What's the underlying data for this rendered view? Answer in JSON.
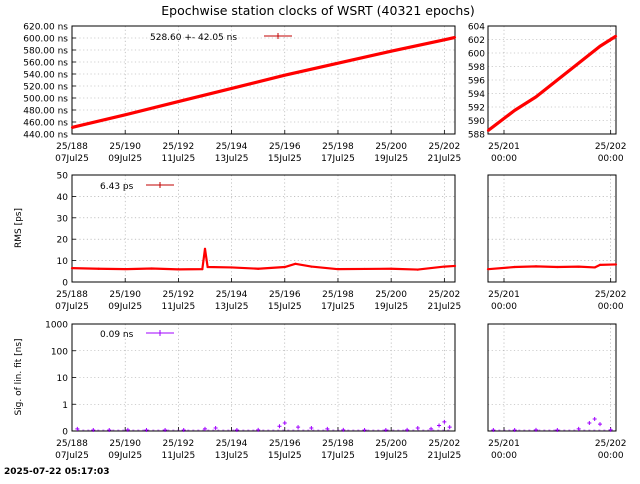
{
  "title": "Epochwise station clocks of WSRT (40321 epochs)",
  "timestamp": "2025-07-22 05:17:03",
  "colors": {
    "red": "#ff0000",
    "purple": "#a000ff",
    "grid": "#a0a0a0",
    "keyline": "#c00000"
  },
  "x_main_ticks": [
    {
      "day": 188,
      "top": "25/188",
      "bottom": "07Jul25"
    },
    {
      "day": 190,
      "top": "25/190",
      "bottom": "09Jul25"
    },
    {
      "day": 192,
      "top": "25/192",
      "bottom": "11Jul25"
    },
    {
      "day": 194,
      "top": "25/194",
      "bottom": "13Jul25"
    },
    {
      "day": 196,
      "top": "25/196",
      "bottom": "15Jul25"
    },
    {
      "day": 198,
      "top": "25/198",
      "bottom": "17Jul25"
    },
    {
      "day": 200,
      "top": "25/200",
      "bottom": "19Jul25"
    },
    {
      "day": 202,
      "top": "25/202",
      "bottom": "21Jul25"
    }
  ],
  "x_zoom_ticks": [
    {
      "day": 201.5,
      "top": "25/201",
      "bottom": "00:00"
    },
    {
      "day": 202.5,
      "top": "25/202",
      "bottom": "00:00"
    }
  ],
  "chart_data": [
    {
      "type": "line",
      "name": "clock",
      "xrange": [
        188,
        202.4
      ],
      "zoom_xrange": [
        201.35,
        202.55
      ],
      "ylim": [
        440,
        620
      ],
      "zoom_ylim": [
        588,
        604
      ],
      "yticks": [
        "440.00 ns",
        "460.00 ns",
        "480.00 ns",
        "500.00 ns",
        "520.00 ns",
        "540.00 ns",
        "560.00 ns",
        "580.00 ns",
        "600.00 ns",
        "620.00 ns"
      ],
      "zoom_yticks": [
        "588",
        "590",
        "592",
        "594",
        "596",
        "598",
        "600",
        "602",
        "604"
      ],
      "ylabel": "",
      "legend": {
        "text": "528.60 +-     42.05 ns"
      },
      "series": [
        {
          "name": "main",
          "x": [
            188,
            190,
            192,
            194,
            196,
            198,
            200,
            202,
            202.4
          ],
          "values": [
            451,
            472,
            494,
            516,
            538,
            558,
            578,
            597,
            601
          ]
        },
        {
          "name": "zoom",
          "x": [
            201.35,
            201.6,
            201.8,
            202.0,
            202.2,
            202.4,
            202.55
          ],
          "values": [
            588.5,
            591.5,
            593.5,
            596,
            598.5,
            601,
            602.5
          ]
        }
      ]
    },
    {
      "type": "line",
      "name": "rms",
      "xrange": [
        188,
        202.4
      ],
      "zoom_xrange": [
        201.35,
        202.55
      ],
      "ylim": [
        0,
        50
      ],
      "zoom_ylim": [
        0,
        50
      ],
      "yticks": [
        "0",
        "10",
        "20",
        "30",
        "40",
        "50"
      ],
      "ylabel": "RMS [ps]",
      "legend": {
        "text": "6.43 ps"
      },
      "series": [
        {
          "name": "main",
          "x": [
            188,
            189,
            190,
            191,
            192,
            192.9,
            193.0,
            193.1,
            194,
            195,
            196,
            196.4,
            197,
            198,
            199,
            200,
            201,
            202,
            202.4
          ],
          "values": [
            6.5,
            6.2,
            6.0,
            6.3,
            5.9,
            6.0,
            15.5,
            7.0,
            6.8,
            6.2,
            7.0,
            8.5,
            7.2,
            6.0,
            6.1,
            6.2,
            5.8,
            7.2,
            7.5
          ]
        },
        {
          "name": "zoom",
          "x": [
            201.35,
            201.6,
            201.8,
            202.0,
            202.2,
            202.35,
            202.4,
            202.55
          ],
          "values": [
            6.0,
            7.0,
            7.3,
            7.0,
            7.2,
            6.8,
            8.0,
            8.2
          ]
        }
      ]
    },
    {
      "type": "scatter",
      "name": "sig",
      "xrange": [
        188,
        202.4
      ],
      "zoom_xrange": [
        201.35,
        202.55
      ],
      "ylim_log": [
        0.1,
        1000
      ],
      "zoom_ylim_log": [
        0.1,
        1000
      ],
      "yticks": [
        "0",
        "1",
        "10",
        "100",
        "1000"
      ],
      "ylabel": "Sig. of lin. fit [ns]",
      "legend": {
        "text": "0.09 ns"
      },
      "series": [
        {
          "name": "main",
          "x": [
            188.2,
            188.8,
            189.4,
            190.1,
            190.8,
            191.5,
            192.2,
            193.0,
            193.4,
            194.2,
            195.0,
            195.8,
            196.0,
            196.5,
            197.0,
            197.6,
            198.2,
            199.0,
            199.8,
            200.6,
            201.0,
            201.5,
            201.8,
            202.0,
            202.2
          ],
          "values": [
            0.12,
            0.1,
            0.1,
            0.11,
            0.1,
            0.1,
            0.1,
            0.12,
            0.13,
            0.1,
            0.11,
            0.15,
            0.2,
            0.14,
            0.13,
            0.12,
            0.11,
            0.1,
            0.1,
            0.11,
            0.13,
            0.12,
            0.16,
            0.22,
            0.14
          ]
        },
        {
          "name": "zoom",
          "x": [
            201.4,
            201.6,
            201.8,
            202.0,
            202.2,
            202.3,
            202.35,
            202.4,
            202.5
          ],
          "values": [
            0.1,
            0.1,
            0.11,
            0.1,
            0.12,
            0.2,
            0.28,
            0.18,
            0.11
          ]
        }
      ]
    }
  ]
}
